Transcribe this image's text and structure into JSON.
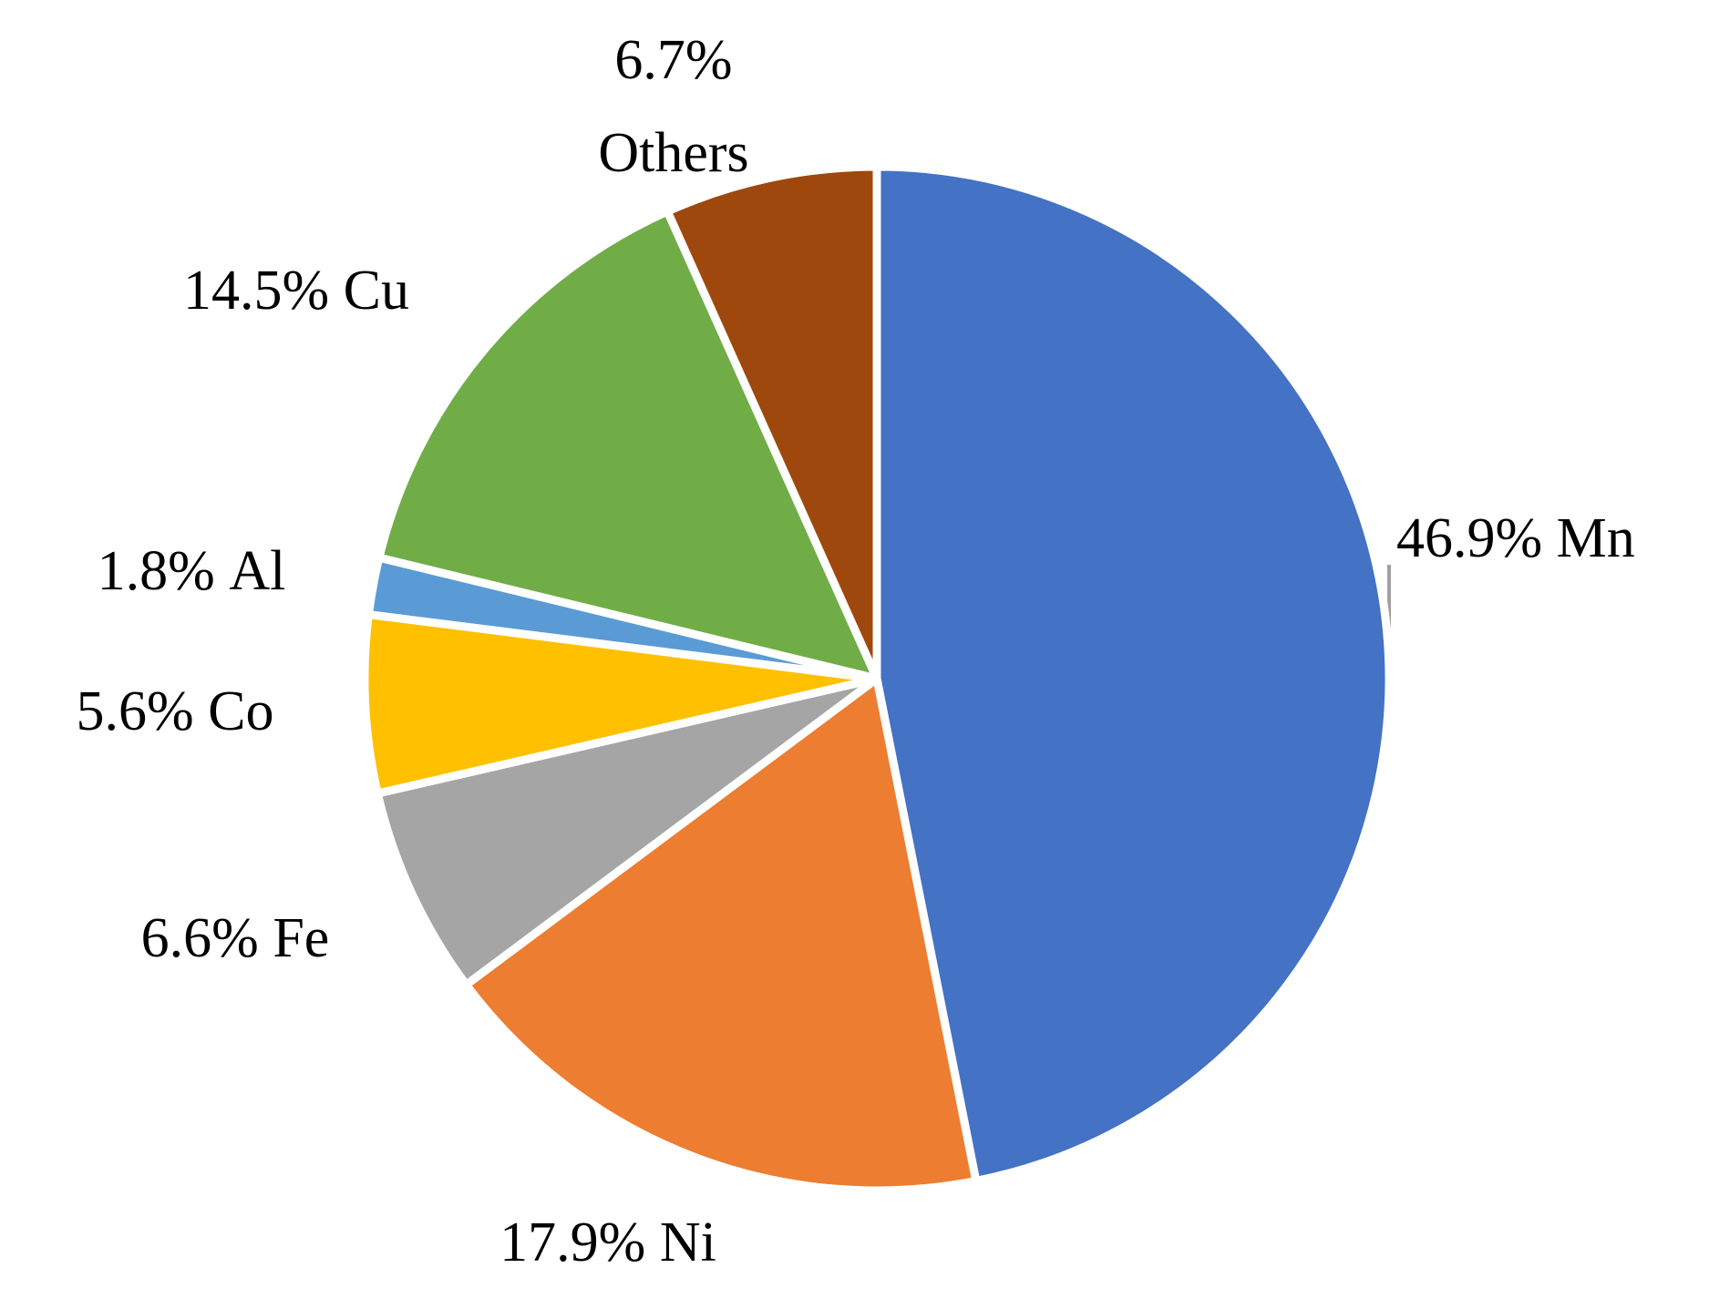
{
  "chart_data": {
    "type": "pie",
    "categories": [
      "Mn",
      "Ni",
      "Fe",
      "Co",
      "Al",
      "Cu",
      "Others"
    ],
    "values": [
      46.9,
      17.9,
      6.6,
      5.6,
      1.8,
      14.5,
      6.7
    ],
    "value_labels": [
      "46.9%",
      "17.9%",
      "6.6%",
      "5.6%",
      "1.8%",
      "14.5%",
      "6.7%"
    ],
    "colors": [
      "#4472c4",
      "#ed7d31",
      "#a5a5a5",
      "#ffc000",
      "#5b9bd5",
      "#70ad47",
      "#9e480e"
    ]
  }
}
